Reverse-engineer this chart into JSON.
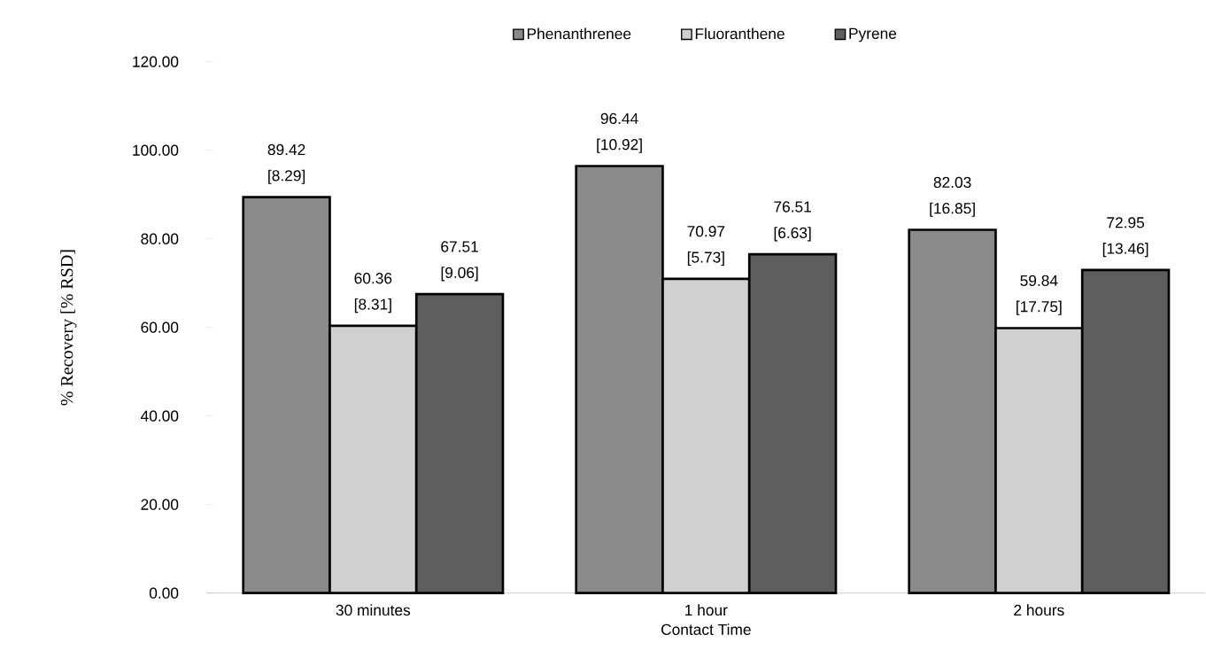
{
  "chart_data": {
    "type": "bar",
    "xlabel": "Contact Time",
    "ylabel": "% Recovery [% RSD]",
    "categories": [
      "30 minutes",
      "1 hour",
      "2 hours"
    ],
    "series": [
      {
        "name": "Phenanthrenee",
        "color": "#8a8a8a",
        "values": [
          89.42,
          96.44,
          82.03
        ],
        "value_labels": [
          "89.42 [8.29]",
          "96.44 [10.92]",
          "82.03 [16.85]"
        ]
      },
      {
        "name": "Fluoranthene",
        "color": "#d0d0d0",
        "values": [
          60.36,
          70.97,
          59.84
        ],
        "value_labels": [
          "60.36 [8.31]",
          "70.97 [5.73]",
          "59.84 [17.75]"
        ]
      },
      {
        "name": "Pyrene",
        "color": "#5e5e5e",
        "values": [
          67.51,
          76.51,
          72.95
        ],
        "value_labels": [
          "67.51 [9.06]",
          "76.51 [6.63]",
          "72.95 [13.46]"
        ]
      }
    ],
    "ylim": [
      0,
      120
    ],
    "yticks": [
      {
        "value": 0,
        "label": "0.00"
      },
      {
        "value": 20,
        "label": "20.00"
      },
      {
        "value": 40,
        "label": "40.00"
      },
      {
        "value": 60,
        "label": "60.00"
      },
      {
        "value": 80,
        "label": "80.00"
      },
      {
        "value": 100,
        "label": "100.00"
      },
      {
        "value": 120,
        "label": "120.00"
      }
    ],
    "grid": false,
    "legend": "top"
  }
}
